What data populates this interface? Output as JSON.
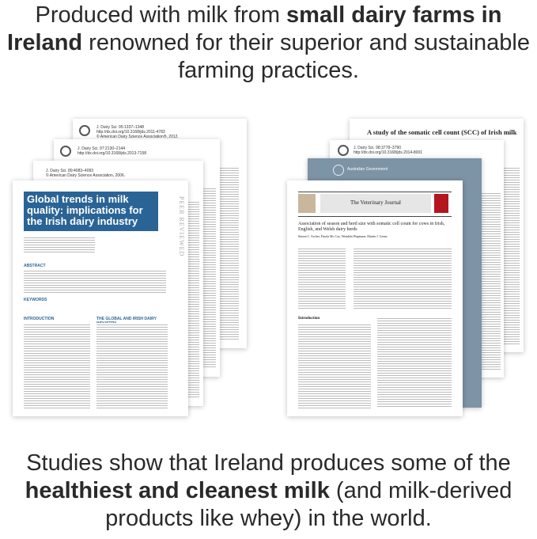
{
  "top_caption": {
    "pre": "Produced with milk from ",
    "bold": "small dairy farms in Ireland",
    "post": " renowned for their superior and sustainable farming practices."
  },
  "bottom_caption": {
    "pre": "Studies show that Ireland produces some of the ",
    "bold": "healthiest and cleanest milk",
    "post": " (and milk-derived products like whey) in the world."
  },
  "papers_left": {
    "back1": {
      "line1": "J. Dairy Sci. 95:1337–1348",
      "line2": "http://dx.doi.org/10.3168/jds.2011-4783",
      "line3": "© American Dairy Science Association®, 2012."
    },
    "back2": {
      "line1": "J. Dairy Sci. 97:2130–2144",
      "line2": "http://dx.doi.org/10.3168/jds.2013-7158"
    },
    "back3": {
      "line1": "J. Dairy Sci. 89:4083–4093",
      "line2": "© American Dairy Science Association, 2006."
    },
    "front": {
      "title": "Global trends in milk quality: implications for the Irish dairy industry",
      "side": "PEER REVIEWED",
      "intro": "INTRODUCTION",
      "section": "THE GLOBAL AND IRISH DAIRY INDUSTRY",
      "abstract": "ABSTRACT",
      "keywords": "KEYWORDS"
    }
  },
  "papers_right": {
    "back1": {
      "title": "A study of the somatic cell count (SCC) of Irish milk"
    },
    "back2": {
      "line1": "J. Dairy Sci. 98:3778–3790",
      "line2": "http://dx.doi.org/10.3168/jds.2014-8001"
    },
    "back3": {
      "org": "Australian Government"
    },
    "front": {
      "journal": "The Veterinary Journal",
      "title": "Association of season and herd size with somatic cell count for cows in Irish, English, and Welsh dairy herds",
      "authors": "Simon C. Archer, Finola Mc Coy, Wendela Wapenaar, Martin J. Green",
      "intro": "Introduction"
    }
  }
}
